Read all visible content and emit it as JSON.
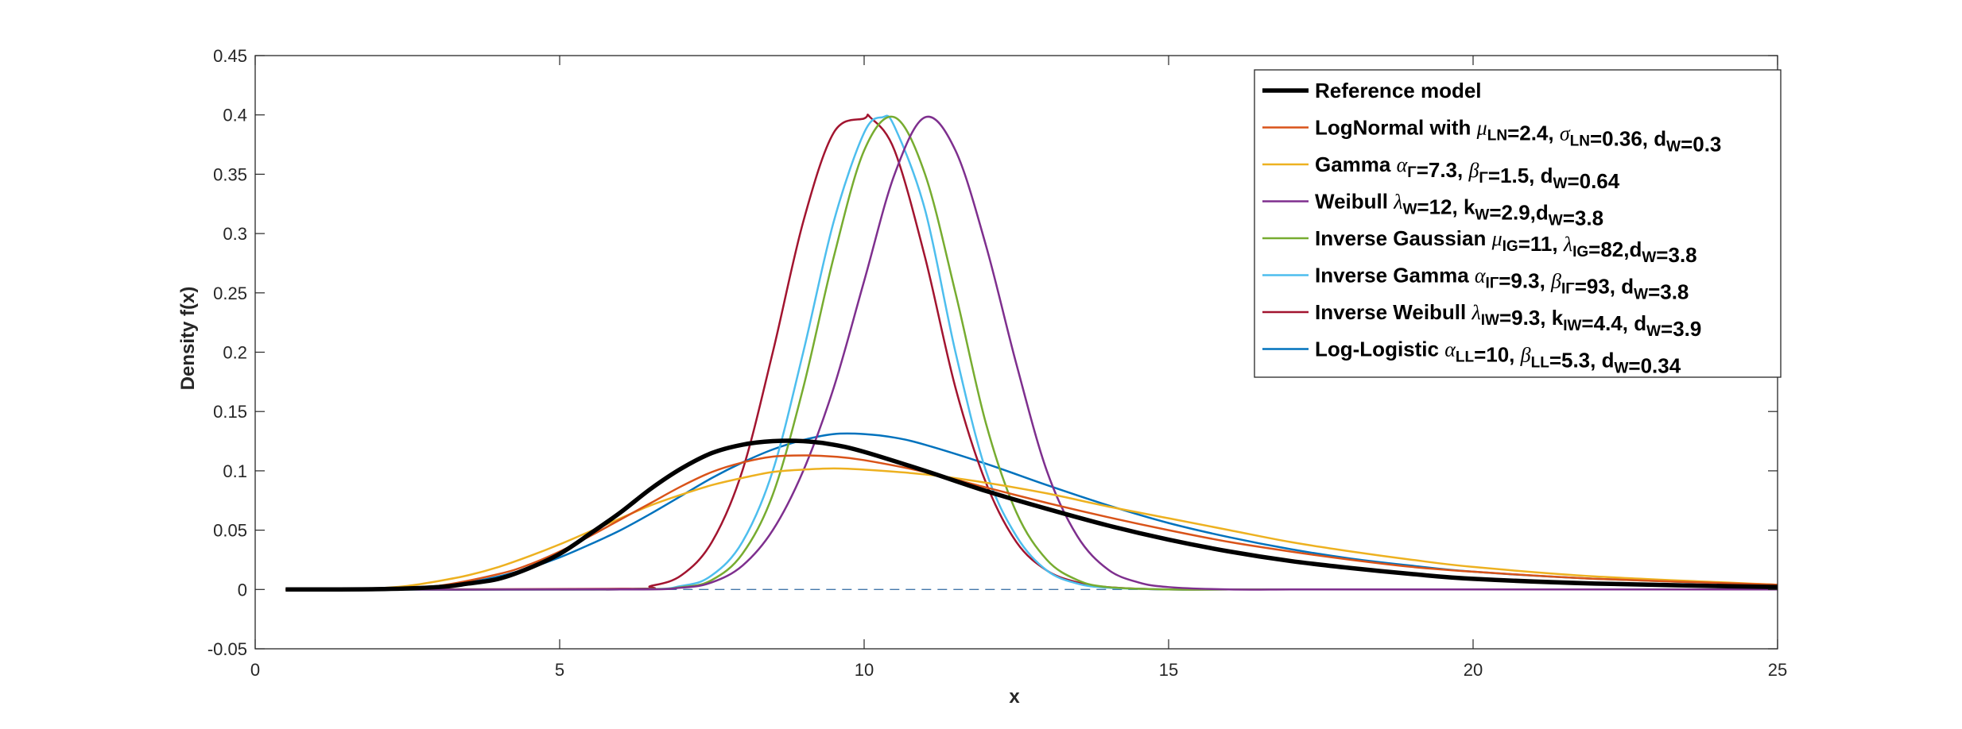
{
  "chart_data": {
    "type": "line",
    "xlabel": "x",
    "ylabel": "Density f(x)",
    "xlim": [
      0,
      25
    ],
    "ylim": [
      -0.05,
      0.45
    ],
    "xticks": [
      "0",
      "5",
      "10",
      "15",
      "20",
      "25"
    ],
    "yticks": [
      "-0.05",
      "0",
      "0.05",
      "0.1",
      "0.15",
      "0.2",
      "0.25",
      "0.3",
      "0.35",
      "0.4",
      "0.45"
    ],
    "grid": false,
    "legend_position": "top-right",
    "zero_line": {
      "y": 0,
      "style": "dashed",
      "color": "#4477AA"
    },
    "series": [
      {
        "name": "Reference model",
        "color": "#000000",
        "width": 5.5,
        "label_parts": [
          [
            "Reference model"
          ]
        ],
        "x": [
          0.5,
          2,
          3,
          3.5,
          4,
          4.5,
          5,
          5.5,
          6,
          6.5,
          7,
          7.5,
          8,
          8.5,
          9,
          9.5,
          10,
          11,
          12,
          13,
          14,
          15,
          16,
          17,
          18,
          19,
          20,
          22,
          25
        ],
        "y": [
          0,
          0.0003,
          0.002,
          0.005,
          0.009,
          0.018,
          0.03,
          0.047,
          0.065,
          0.085,
          0.102,
          0.115,
          0.122,
          0.125,
          0.125,
          0.122,
          0.116,
          0.1,
          0.083,
          0.068,
          0.054,
          0.042,
          0.032,
          0.024,
          0.018,
          0.013,
          0.009,
          0.005,
          0.002
        ]
      },
      {
        "name": "LogNormal with μLN=2.4, σLN=0.36, dW=0.3",
        "color": "#D95319",
        "width": 2.5,
        "label_parts": [
          [
            "LogNormal with "
          ],
          [
            "μ",
            "i"
          ],
          [
            "LN",
            "s"
          ],
          [
            "=2.4, "
          ],
          [
            "σ",
            "i"
          ],
          [
            "LN",
            "s"
          ],
          [
            "=0.36, d"
          ],
          [
            "W",
            "s"
          ],
          [
            "=0.3"
          ]
        ],
        "x": [
          0.5,
          2,
          3,
          4,
          4.5,
          5,
          5.5,
          6,
          6.5,
          7,
          7.5,
          8,
          8.5,
          9,
          9.5,
          10,
          11,
          12,
          13,
          14,
          15,
          16,
          17,
          18,
          19,
          20,
          22,
          25
        ],
        "y": [
          0,
          0.0004,
          0.003,
          0.013,
          0.021,
          0.032,
          0.045,
          0.059,
          0.073,
          0.087,
          0.099,
          0.107,
          0.112,
          0.113,
          0.112,
          0.109,
          0.099,
          0.086,
          0.073,
          0.061,
          0.05,
          0.04,
          0.032,
          0.025,
          0.019,
          0.015,
          0.009,
          0.004
        ]
      },
      {
        "name": "Gamma αΓ=7.3, βΓ=1.5, dW=0.64",
        "color": "#EDB120",
        "width": 2.5,
        "label_parts": [
          [
            "Gamma  "
          ],
          [
            "α",
            "i"
          ],
          [
            "Γ",
            "s"
          ],
          [
            "=7.3, "
          ],
          [
            "β",
            "i"
          ],
          [
            "Γ",
            "s"
          ],
          [
            "=1.5, d"
          ],
          [
            "W",
            "s"
          ],
          [
            "=0.64"
          ]
        ],
        "x": [
          0.5,
          1.5,
          2,
          2.5,
          3,
          3.5,
          4,
          4.5,
          5,
          5.5,
          6,
          6.5,
          7,
          7.5,
          8,
          8.5,
          9,
          9.5,
          10,
          11,
          12,
          13,
          14,
          15,
          16,
          17,
          18,
          19,
          20,
          22,
          25
        ],
        "y": [
          0,
          0.0003,
          0.001,
          0.003,
          0.007,
          0.012,
          0.019,
          0.028,
          0.038,
          0.049,
          0.06,
          0.071,
          0.08,
          0.088,
          0.094,
          0.099,
          0.101,
          0.102,
          0.101,
          0.097,
          0.09,
          0.081,
          0.07,
          0.06,
          0.05,
          0.04,
          0.032,
          0.025,
          0.019,
          0.011,
          0.004
        ]
      },
      {
        "name": "Weibull λW=12, kW=2.9,dW=3.8",
        "color": "#7E2F8E",
        "width": 2.5,
        "label_parts": [
          [
            "Weibull  "
          ],
          [
            "λ",
            "i"
          ],
          [
            "W",
            "s"
          ],
          [
            "=12, k"
          ],
          [
            "W",
            "s"
          ],
          [
            "=2.9,d"
          ],
          [
            "W",
            "s"
          ],
          [
            "=3.8"
          ]
        ],
        "x": [
          0.5,
          6,
          7,
          7.5,
          8,
          8.5,
          9,
          9.5,
          10,
          10.5,
          11,
          11.5,
          12,
          12.5,
          13,
          13.5,
          14,
          14.5,
          15,
          16,
          17,
          18,
          20,
          25
        ],
        "y": [
          0,
          0,
          0.0015,
          0.006,
          0.02,
          0.05,
          0.1,
          0.17,
          0.26,
          0.35,
          0.398,
          0.37,
          0.29,
          0.19,
          0.1,
          0.045,
          0.017,
          0.006,
          0.002,
          0,
          0,
          0,
          0,
          0
        ]
      },
      {
        "name": "Inverse Gaussian μIG=11, λIG=82,dW=3.8",
        "color": "#77AC30",
        "width": 2.5,
        "label_parts": [
          [
            "Inverse Gaussian  "
          ],
          [
            "μ",
            "i"
          ],
          [
            "IG",
            "s"
          ],
          [
            "=11, "
          ],
          [
            "λ",
            "i"
          ],
          [
            "IG",
            "s"
          ],
          [
            "=82,d"
          ],
          [
            "W",
            "s"
          ],
          [
            "=3.8"
          ]
        ],
        "x": [
          0.5,
          6,
          7,
          7.5,
          8,
          8.5,
          9,
          9.5,
          10,
          10.5,
          11,
          11.5,
          12,
          12.5,
          13,
          13.5,
          14,
          15,
          16,
          20,
          25
        ],
        "y": [
          0,
          0,
          0.002,
          0.008,
          0.03,
          0.08,
          0.17,
          0.28,
          0.37,
          0.398,
          0.35,
          0.25,
          0.14,
          0.065,
          0.025,
          0.008,
          0.002,
          0,
          0,
          0,
          0
        ]
      },
      {
        "name": "Inverse Gamma αIΓ=9.3, βIΓ=93, dW=3.8",
        "color": "#4DBEEE",
        "width": 2.5,
        "label_parts": [
          [
            "Inverse Gamma  "
          ],
          [
            "α",
            "i"
          ],
          [
            "IΓ",
            "s"
          ],
          [
            "=9.3, "
          ],
          [
            "β",
            "i"
          ],
          [
            "IΓ",
            "s"
          ],
          [
            "=93, d"
          ],
          [
            "W",
            "s"
          ],
          [
            "=3.8"
          ]
        ],
        "x": [
          0.5,
          6,
          7,
          7.5,
          8,
          8.5,
          9,
          9.5,
          10,
          10.3,
          10.5,
          11,
          11.5,
          12,
          12.5,
          13,
          13.5,
          14,
          15,
          16,
          20,
          25
        ],
        "y": [
          0,
          0,
          0.003,
          0.012,
          0.04,
          0.1,
          0.2,
          0.31,
          0.385,
          0.398,
          0.39,
          0.32,
          0.2,
          0.1,
          0.045,
          0.016,
          0.005,
          0.0015,
          0,
          0,
          0,
          0
        ]
      },
      {
        "name": "Inverse Weibull λIW=9.3, kIW=4.4, dW=3.9",
        "color": "#A2142F",
        "width": 2.5,
        "label_parts": [
          [
            "Inverse Weibull  "
          ],
          [
            "λ",
            "i"
          ],
          [
            "IW",
            "s"
          ],
          [
            "=9.3, k"
          ],
          [
            "IW",
            "s"
          ],
          [
            "=4.4, d"
          ],
          [
            "W",
            "s"
          ],
          [
            "=3.9"
          ]
        ],
        "x": [
          0.5,
          6,
          6.5,
          7,
          7.5,
          8,
          8.5,
          9,
          9.5,
          10,
          10.1,
          10.5,
          11,
          11.5,
          12,
          12.5,
          13,
          13.5,
          14,
          15,
          16,
          20,
          25
        ],
        "y": [
          0,
          0.0005,
          0.003,
          0.012,
          0.04,
          0.1,
          0.2,
          0.31,
          0.385,
          0.397,
          0.398,
          0.37,
          0.28,
          0.17,
          0.09,
          0.04,
          0.016,
          0.006,
          0.002,
          0,
          0,
          0,
          0
        ]
      },
      {
        "name": "Log-Logistic αLL=10, βLL=5.3, dW=0.34",
        "color": "#0072BD",
        "width": 2.5,
        "label_parts": [
          [
            "Log-Logistic  "
          ],
          [
            "α",
            "i"
          ],
          [
            "LL",
            "s"
          ],
          [
            "=10, "
          ],
          [
            "β",
            "i"
          ],
          [
            "LL",
            "s"
          ],
          [
            "=5.3, d"
          ],
          [
            "W",
            "s"
          ],
          [
            "=0.34"
          ]
        ],
        "x": [
          0.5,
          2,
          3,
          3.5,
          4,
          4.5,
          5,
          5.5,
          6,
          6.5,
          7,
          7.5,
          8,
          8.5,
          9,
          9.5,
          10,
          10.5,
          11,
          12,
          13,
          14,
          15,
          16,
          17,
          18,
          19,
          20,
          22,
          25
        ],
        "y": [
          0,
          0.0005,
          0.003,
          0.006,
          0.011,
          0.018,
          0.027,
          0.038,
          0.05,
          0.064,
          0.079,
          0.094,
          0.107,
          0.118,
          0.126,
          0.131,
          0.131,
          0.128,
          0.122,
          0.106,
          0.088,
          0.071,
          0.056,
          0.044,
          0.034,
          0.026,
          0.02,
          0.015,
          0.009,
          0.004
        ]
      }
    ]
  }
}
